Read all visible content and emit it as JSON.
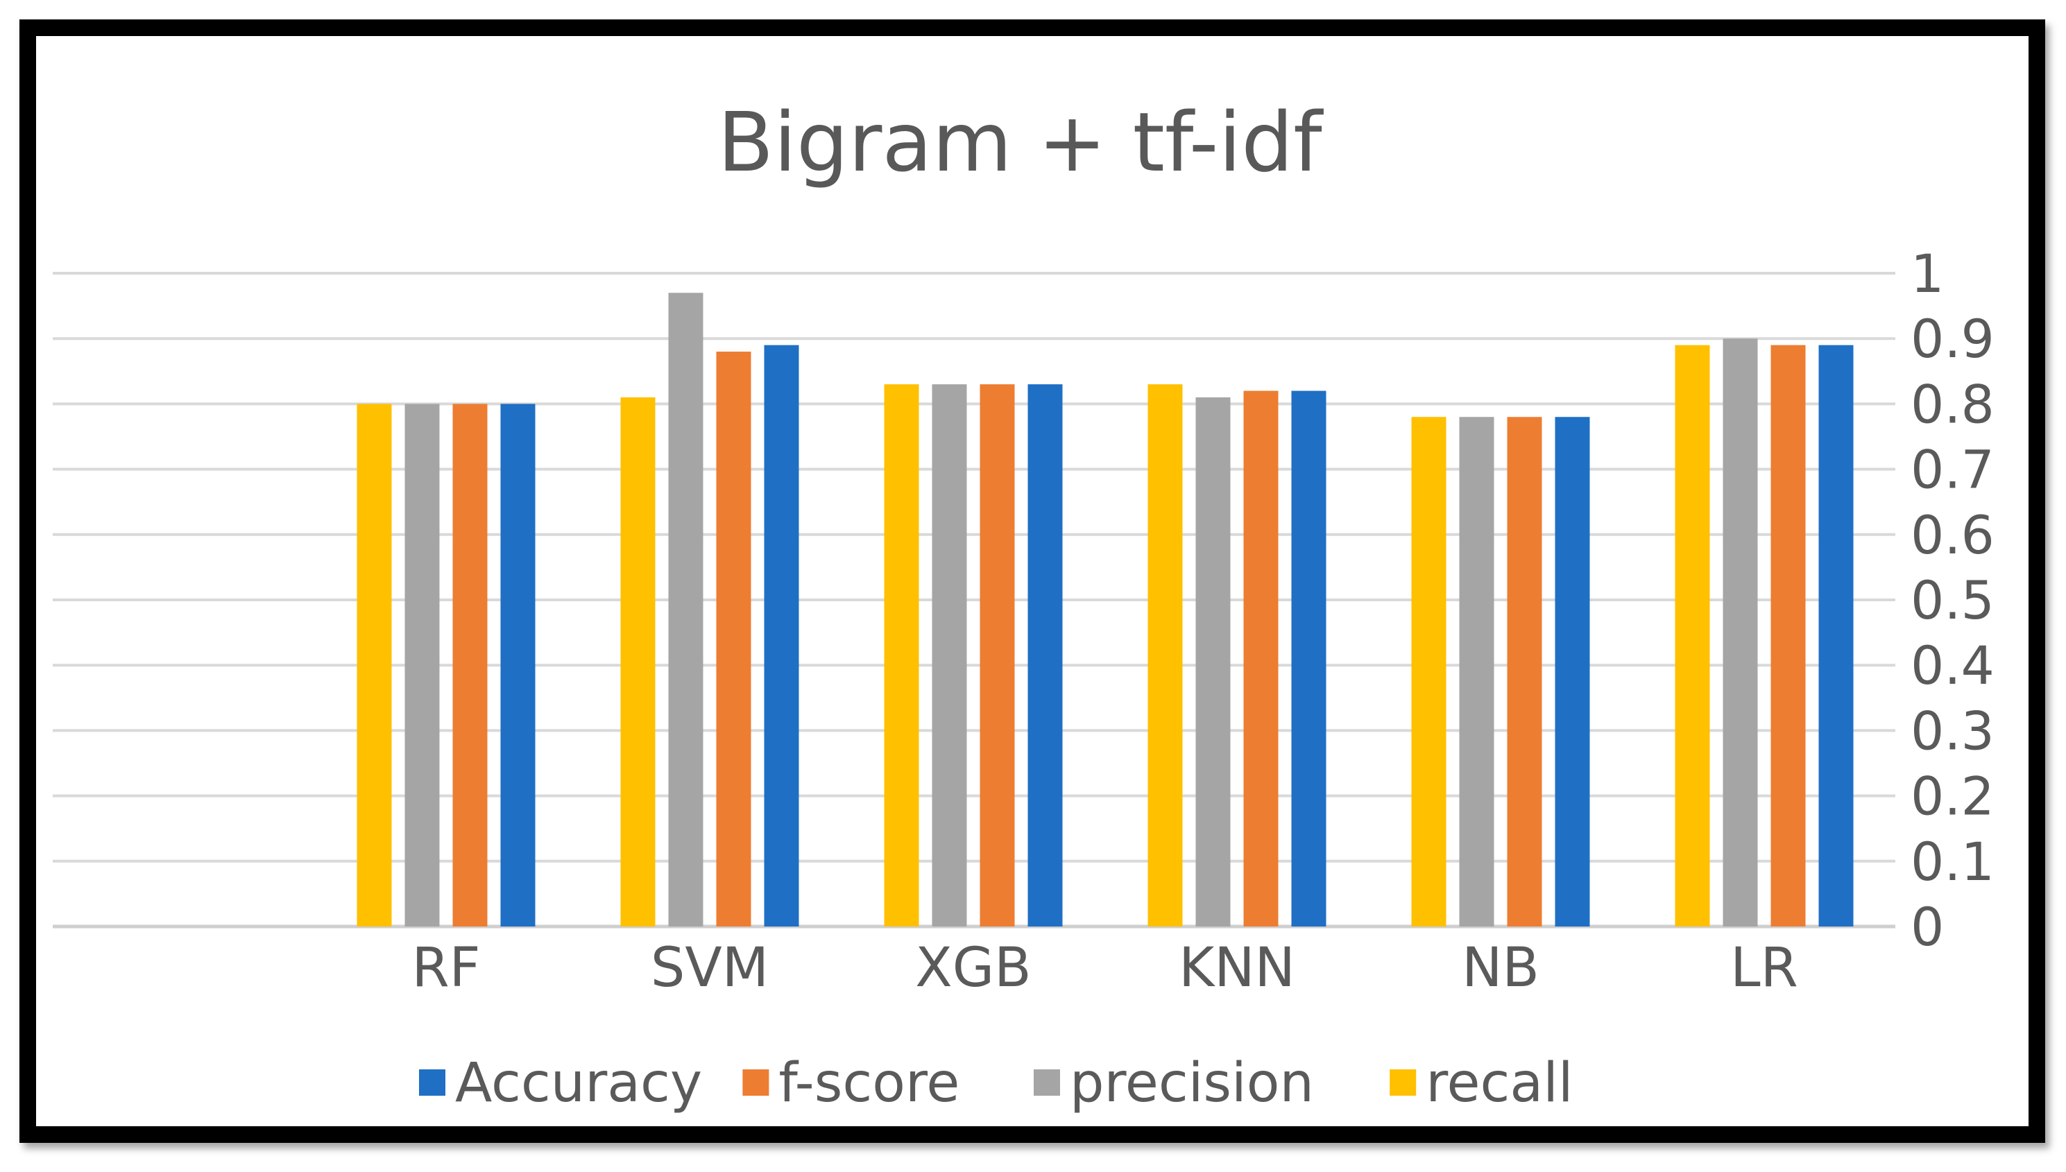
{
  "chart_data": {
    "type": "bar",
    "title": "Bigram + tf-idf",
    "categories": [
      "RF",
      "SVM",
      "XGB",
      "KNN",
      "NB",
      "LR"
    ],
    "series": [
      {
        "name": "recall",
        "color": "#FFC000",
        "values": [
          0.8,
          0.81,
          0.83,
          0.83,
          0.78,
          0.89
        ]
      },
      {
        "name": "precision",
        "color": "#A5A5A5",
        "values": [
          0.8,
          0.97,
          0.83,
          0.81,
          0.78,
          0.9
        ]
      },
      {
        "name": "f-score",
        "color": "#ED7D31",
        "values": [
          0.8,
          0.88,
          0.83,
          0.82,
          0.78,
          0.89
        ]
      },
      {
        "name": "Accuracy",
        "color": "#1F6FC5",
        "values": [
          0.8,
          0.89,
          0.83,
          0.82,
          0.78,
          0.89
        ]
      }
    ],
    "legend_order": [
      "Accuracy",
      "f-score",
      "precision",
      "recall"
    ],
    "yticks": [
      "0",
      "0.1",
      "0.2",
      "0.3",
      "0.4",
      "0.5",
      "0.6",
      "0.7",
      "0.8",
      "0.9",
      "1"
    ],
    "ylim": [
      0,
      1
    ],
    "y_axis_side": "right",
    "grid": true,
    "legend_position": "bottom"
  }
}
